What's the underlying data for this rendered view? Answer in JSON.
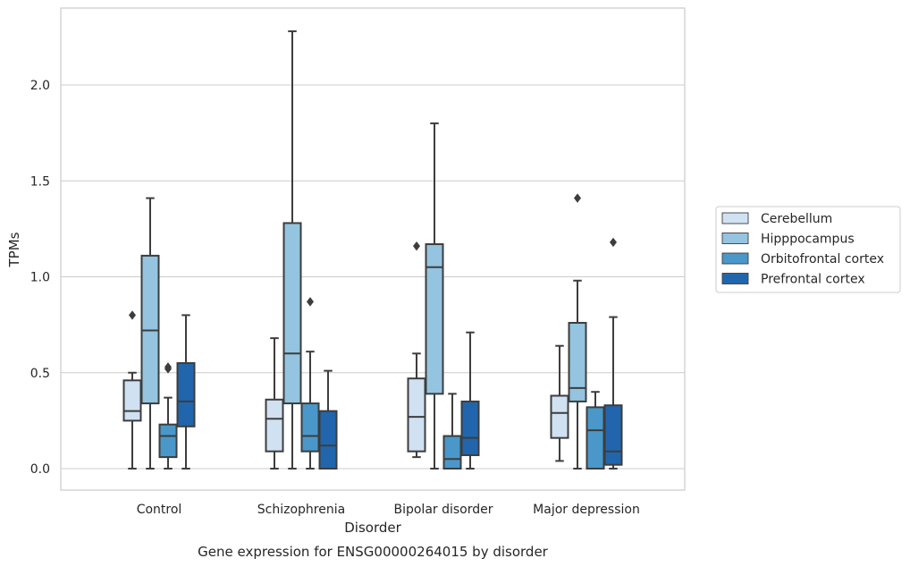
{
  "chart_data": {
    "type": "box",
    "caption": "Gene expression for ENSG00000264015 by disorder",
    "xlabel": "Disorder",
    "ylabel": "TPMs",
    "ylim": [
      -0.11,
      2.4
    ],
    "yticks": [
      0.0,
      0.5,
      1.0,
      1.5,
      2.0
    ],
    "ytick_labels": [
      "0.0",
      "0.5",
      "1.0",
      "1.5",
      "2.0"
    ],
    "grid": "horizontal",
    "legend_position": "right",
    "categories": [
      "Control",
      "Schizophrenia",
      "Bipolar disorder",
      "Major depression"
    ],
    "series": [
      {
        "name": "Cerebellum",
        "color": "#d0e1f2",
        "boxes": [
          {
            "whisker_low": 0.0,
            "q1": 0.25,
            "median": 0.3,
            "q3": 0.46,
            "whisker_high": 0.5,
            "outliers": [
              0.8
            ]
          },
          {
            "whisker_low": 0.0,
            "q1": 0.09,
            "median": 0.26,
            "q3": 0.36,
            "whisker_high": 0.68,
            "outliers": []
          },
          {
            "whisker_low": 0.06,
            "q1": 0.09,
            "median": 0.27,
            "q3": 0.47,
            "whisker_high": 0.6,
            "outliers": [
              1.16
            ]
          },
          {
            "whisker_low": 0.04,
            "q1": 0.16,
            "median": 0.29,
            "q3": 0.38,
            "whisker_high": 0.64,
            "outliers": []
          }
        ]
      },
      {
        "name": "Hipppocampus",
        "color": "#94c4df",
        "boxes": [
          {
            "whisker_low": 0.0,
            "q1": 0.34,
            "median": 0.72,
            "q3": 1.11,
            "whisker_high": 1.41,
            "outliers": []
          },
          {
            "whisker_low": 0.0,
            "q1": 0.34,
            "median": 0.6,
            "q3": 1.28,
            "whisker_high": 2.28,
            "outliers": []
          },
          {
            "whisker_low": 0.0,
            "q1": 0.39,
            "median": 1.05,
            "q3": 1.17,
            "whisker_high": 1.8,
            "outliers": []
          },
          {
            "whisker_low": 0.0,
            "q1": 0.35,
            "median": 0.42,
            "q3": 0.76,
            "whisker_high": 0.98,
            "outliers": [
              1.41
            ]
          }
        ]
      },
      {
        "name": "Orbitofrontal cortex",
        "color": "#4a98c9",
        "boxes": [
          {
            "whisker_low": 0.0,
            "q1": 0.06,
            "median": 0.17,
            "q3": 0.23,
            "whisker_high": 0.37,
            "outliers": [
              0.52,
              0.53
            ]
          },
          {
            "whisker_low": 0.0,
            "q1": 0.09,
            "median": 0.17,
            "q3": 0.34,
            "whisker_high": 0.61,
            "outliers": [
              0.87
            ]
          },
          {
            "whisker_low": 0.0,
            "q1": 0.0,
            "median": 0.05,
            "q3": 0.17,
            "whisker_high": 0.39,
            "outliers": []
          },
          {
            "whisker_low": 0.0,
            "q1": 0.0,
            "median": 0.2,
            "q3": 0.32,
            "whisker_high": 0.4,
            "outliers": []
          }
        ]
      },
      {
        "name": "Prefrontal cortex",
        "color": "#2166ac",
        "boxes": [
          {
            "whisker_low": 0.0,
            "q1": 0.22,
            "median": 0.35,
            "q3": 0.55,
            "whisker_high": 0.8,
            "outliers": []
          },
          {
            "whisker_low": 0.0,
            "q1": 0.0,
            "median": 0.12,
            "q3": 0.3,
            "whisker_high": 0.51,
            "outliers": []
          },
          {
            "whisker_low": 0.0,
            "q1": 0.07,
            "median": 0.16,
            "q3": 0.35,
            "whisker_high": 0.71,
            "outliers": []
          },
          {
            "whisker_low": 0.0,
            "q1": 0.02,
            "median": 0.09,
            "q3": 0.33,
            "whisker_high": 0.79,
            "outliers": [
              1.18
            ]
          }
        ]
      }
    ]
  }
}
